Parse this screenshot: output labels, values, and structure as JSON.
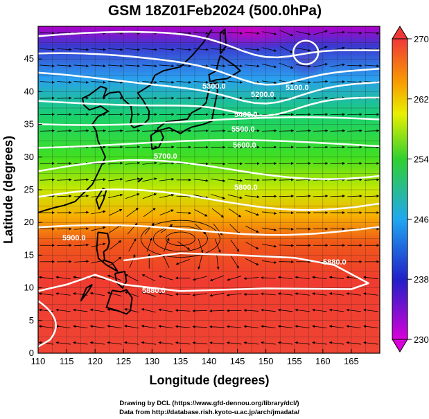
{
  "title": "GSM 18Z01Feb2024 (500.0hPa)",
  "xlabel": "Longitude (degrees)",
  "ylabel": "Latitude  (degrees)",
  "x_ticks": [
    "110",
    "115",
    "120",
    "125",
    "130",
    "135",
    "140",
    "145",
    "150",
    "155",
    "160",
    "165"
  ],
  "y_ticks": [
    "0",
    "5",
    "10",
    "15",
    "20",
    "25",
    "30",
    "35",
    "40",
    "45"
  ],
  "colorbar_ticks": [
    "230",
    "238",
    "246",
    "254",
    "262",
    "270"
  ],
  "contour_labels": [
    "5100.0",
    "5200.0",
    "5300.0",
    "5400.0",
    "5500.0",
    "5600.0",
    "5700.0",
    "5800.0",
    "5900.0",
    "5880.0",
    "5880.0"
  ],
  "credit_line1": "Drawing by DCL (https://www.gfd-dennou.org/library/dcl/)",
  "credit_line2": "Data from http://database.rish.kyoto-u.ac.jp/arch/jmadata/",
  "chart_data": {
    "type": "heatmap",
    "variable_ranges": {
      "x_range": [
        110,
        170
      ],
      "y_range": [
        0,
        50
      ],
      "color_range": [
        230,
        270
      ]
    },
    "colormap": [
      "#d800d8",
      "#2020c8",
      "#20a8f0",
      "#18d060",
      "#48e020",
      "#e8f000",
      "#f8a000",
      "#f03818",
      "#f03c3c"
    ],
    "grid": true,
    "geopotential_contours": [
      {
        "value": 5100,
        "lat_center": 48.5
      },
      {
        "value": 5200,
        "lat_center": 45.0
      },
      {
        "value": 5300,
        "lat_center": 42.0
      },
      {
        "value": 5400,
        "lat_center": 38.5
      },
      {
        "value": 5500,
        "lat_center": 35.5
      },
      {
        "value": 5600,
        "lat_center": 32.0
      },
      {
        "value": 5700,
        "lat_center": 28.0
      },
      {
        "value": 5800,
        "lat_center": 23.5
      },
      {
        "value": 5880,
        "lat_center": 16.0
      },
      {
        "value": 5900,
        "lat_center": 19.0
      }
    ],
    "cyclone_center": {
      "lon": 157,
      "lat": 46
    },
    "anticyclone_center": {
      "lon": 135,
      "lat": 17.5
    }
  }
}
